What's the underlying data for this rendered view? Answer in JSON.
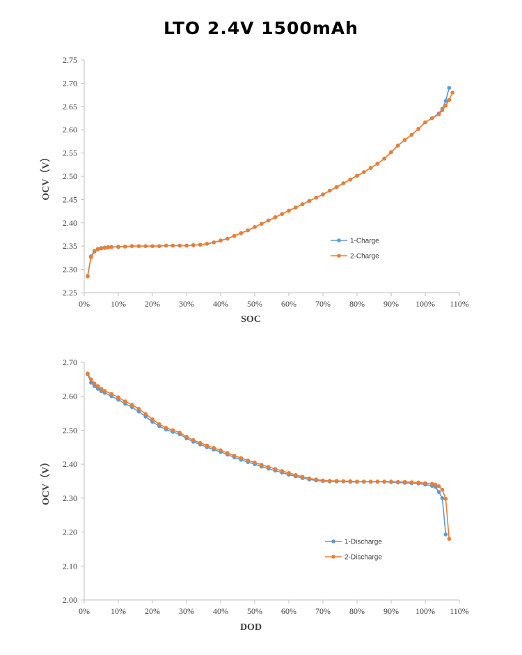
{
  "title": "LTO 2.4V 1500mAh",
  "colors": {
    "series1": "#5b9bd5",
    "series2": "#ed7d31",
    "axis": "#bfbfbf"
  },
  "chart_data": [
    {
      "type": "line",
      "xlabel": "SOC",
      "ylabel": "OCV（V）",
      "xlim": [
        0,
        110
      ],
      "ylim": [
        2.25,
        2.75
      ],
      "y_ticks": [
        "2.25",
        "2.30",
        "2.35",
        "2.40",
        "2.45",
        "2.50",
        "2.55",
        "2.60",
        "2.65",
        "2.70",
        "2.75"
      ],
      "x_ticks": [
        "0%",
        "10%",
        "20%",
        "30%",
        "40%",
        "50%",
        "60%",
        "70%",
        "80%",
        "90%",
        "100%",
        "110%"
      ],
      "legend": "right-middle",
      "series": [
        {
          "name": "1-Charge",
          "x": [
            1,
            2,
            3,
            4,
            5,
            6,
            7,
            8,
            10,
            12,
            14,
            16,
            18,
            20,
            22,
            24,
            26,
            28,
            30,
            32,
            34,
            36,
            38,
            40,
            42,
            44,
            46,
            48,
            50,
            52,
            54,
            56,
            58,
            60,
            62,
            64,
            66,
            68,
            70,
            72,
            74,
            76,
            78,
            80,
            82,
            84,
            86,
            88,
            90,
            92,
            94,
            96,
            98,
            100,
            102,
            104,
            105,
            106,
            107
          ],
          "values": [
            2.286,
            2.328,
            2.34,
            2.344,
            2.346,
            2.347,
            2.348,
            2.348,
            2.349,
            2.349,
            2.35,
            2.35,
            2.35,
            2.35,
            2.35,
            2.351,
            2.351,
            2.351,
            2.351,
            2.352,
            2.353,
            2.355,
            2.358,
            2.362,
            2.366,
            2.372,
            2.378,
            2.384,
            2.391,
            2.398,
            2.405,
            2.412,
            2.419,
            2.426,
            2.433,
            2.44,
            2.447,
            2.454,
            2.461,
            2.469,
            2.477,
            2.485,
            2.493,
            2.501,
            2.509,
            2.518,
            2.527,
            2.538,
            2.552,
            2.566,
            2.578,
            2.589,
            2.602,
            2.616,
            2.625,
            2.635,
            2.645,
            2.662,
            2.69
          ]
        },
        {
          "name": "2-Charge",
          "x": [
            1,
            2,
            3,
            4,
            5,
            6,
            7,
            8,
            10,
            12,
            14,
            16,
            18,
            20,
            22,
            24,
            26,
            28,
            30,
            32,
            34,
            36,
            38,
            40,
            42,
            44,
            46,
            48,
            50,
            52,
            54,
            56,
            58,
            60,
            62,
            64,
            66,
            68,
            70,
            72,
            74,
            76,
            78,
            80,
            82,
            84,
            86,
            88,
            90,
            92,
            94,
            96,
            98,
            100,
            102,
            104,
            105,
            106,
            107,
            108
          ],
          "values": [
            2.285,
            2.326,
            2.338,
            2.343,
            2.345,
            2.346,
            2.347,
            2.348,
            2.348,
            2.349,
            2.35,
            2.35,
            2.35,
            2.35,
            2.35,
            2.351,
            2.351,
            2.351,
            2.351,
            2.352,
            2.353,
            2.355,
            2.358,
            2.362,
            2.366,
            2.372,
            2.378,
            2.384,
            2.391,
            2.398,
            2.405,
            2.412,
            2.419,
            2.426,
            2.433,
            2.44,
            2.447,
            2.454,
            2.461,
            2.469,
            2.477,
            2.485,
            2.493,
            2.501,
            2.509,
            2.518,
            2.527,
            2.538,
            2.552,
            2.566,
            2.578,
            2.589,
            2.602,
            2.616,
            2.625,
            2.633,
            2.642,
            2.652,
            2.664,
            2.68
          ]
        }
      ]
    },
    {
      "type": "line",
      "xlabel": "DOD",
      "ylabel": "OCV（V）",
      "xlim": [
        0,
        110
      ],
      "ylim": [
        2.0,
        2.7
      ],
      "y_ticks": [
        "2.00",
        "2.10",
        "2.20",
        "2.30",
        "2.40",
        "2.50",
        "2.60",
        "2.70"
      ],
      "x_ticks": [
        "0%",
        "10%",
        "20%",
        "30%",
        "40%",
        "50%",
        "60%",
        "70%",
        "80%",
        "90%",
        "100%",
        "110%"
      ],
      "legend": "right-bottom",
      "series": [
        {
          "name": "1-Discharge",
          "x": [
            1,
            2,
            3,
            4,
            5,
            6,
            8,
            10,
            12,
            14,
            16,
            18,
            20,
            22,
            24,
            26,
            28,
            30,
            32,
            34,
            36,
            38,
            40,
            42,
            44,
            46,
            48,
            50,
            52,
            54,
            56,
            58,
            60,
            62,
            64,
            66,
            68,
            70,
            72,
            74,
            76,
            78,
            80,
            82,
            84,
            86,
            88,
            90,
            92,
            94,
            96,
            98,
            100,
            102,
            103,
            104,
            105,
            106
          ],
          "values": [
            2.665,
            2.64,
            2.63,
            2.622,
            2.615,
            2.61,
            2.6,
            2.59,
            2.578,
            2.568,
            2.555,
            2.54,
            2.525,
            2.512,
            2.502,
            2.495,
            2.488,
            2.476,
            2.466,
            2.458,
            2.45,
            2.443,
            2.436,
            2.428,
            2.42,
            2.413,
            2.406,
            2.4,
            2.393,
            2.387,
            2.381,
            2.375,
            2.369,
            2.364,
            2.359,
            2.355,
            2.352,
            2.35,
            2.349,
            2.349,
            2.349,
            2.348,
            2.348,
            2.348,
            2.348,
            2.348,
            2.348,
            2.347,
            2.346,
            2.345,
            2.344,
            2.343,
            2.34,
            2.336,
            2.333,
            2.318,
            2.3,
            2.193
          ]
        },
        {
          "name": "2-Discharge",
          "x": [
            1,
            2,
            3,
            4,
            5,
            6,
            8,
            10,
            12,
            14,
            16,
            18,
            20,
            22,
            24,
            26,
            28,
            30,
            32,
            34,
            36,
            38,
            40,
            42,
            44,
            46,
            48,
            50,
            52,
            54,
            56,
            58,
            60,
            62,
            64,
            66,
            68,
            70,
            72,
            74,
            76,
            78,
            80,
            82,
            84,
            86,
            88,
            90,
            92,
            94,
            96,
            98,
            100,
            102,
            103,
            104,
            105,
            106,
            107
          ],
          "values": [
            2.667,
            2.65,
            2.638,
            2.63,
            2.622,
            2.616,
            2.607,
            2.597,
            2.585,
            2.575,
            2.563,
            2.548,
            2.532,
            2.518,
            2.507,
            2.5,
            2.493,
            2.481,
            2.471,
            2.463,
            2.455,
            2.448,
            2.441,
            2.433,
            2.425,
            2.418,
            2.411,
            2.405,
            2.398,
            2.392,
            2.386,
            2.38,
            2.374,
            2.368,
            2.363,
            2.358,
            2.355,
            2.352,
            2.351,
            2.351,
            2.35,
            2.35,
            2.349,
            2.349,
            2.349,
            2.349,
            2.349,
            2.349,
            2.348,
            2.348,
            2.347,
            2.346,
            2.344,
            2.342,
            2.34,
            2.335,
            2.325,
            2.298,
            2.18
          ]
        }
      ]
    }
  ]
}
